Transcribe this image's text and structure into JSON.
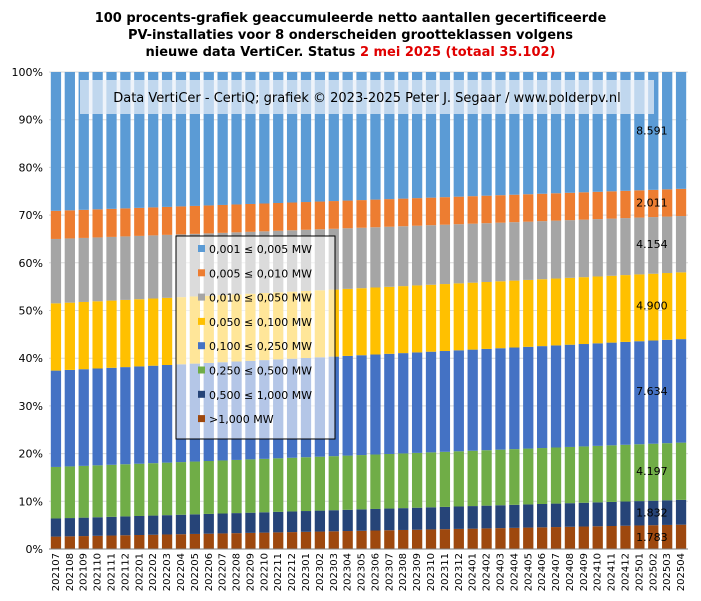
{
  "title": {
    "line1": "100 procents-grafiek geaccumuleerde netto aantallen gecertificeerde",
    "line2": "PV-installaties voor 8 onderscheiden grootteklassen volgens",
    "line3_prefix": "nieuwe data VertiCer. Status",
    "line3_highlight": "2 mei 2025 (totaal 35.102)"
  },
  "colors": {
    "highlight": "#e00000",
    "background": "#ffffff"
  },
  "chart_data": {
    "type": "bar",
    "stacked": true,
    "percent": true,
    "banner": "Data VertiCer - CertiQ; grafiek © 2023-2025 Peter J. Segaar / www.polderpv.nl",
    "ylim": [
      0,
      100
    ],
    "yticks": [
      "0%",
      "10%",
      "20%",
      "30%",
      "40%",
      "50%",
      "60%",
      "70%",
      "80%",
      "90%",
      "100%"
    ],
    "grid": true,
    "legend_position": "left-center",
    "categories": [
      "202107",
      "202108",
      "202109",
      "202110",
      "202111",
      "202112",
      "202201",
      "202202",
      "202203",
      "202204",
      "202205",
      "202206",
      "202207",
      "202208",
      "202209",
      "202210",
      "202211",
      "202212",
      "202301",
      "202302",
      "202303",
      "202304",
      "202305",
      "202306",
      "202307",
      "202308",
      "202309",
      "202310",
      "202311",
      "202312",
      "202401",
      "202402",
      "202403",
      "202404",
      "202405",
      "202406",
      "202407",
      "202408",
      "202409",
      "202410",
      "202411",
      "202412",
      "202501",
      "202502",
      "202503",
      "202504"
    ],
    "series": [
      {
        "name": ">1,000 MW",
        "color": "#9e480e",
        "start": 2.6,
        "end": 5.1
      },
      {
        "name": "0,500 ≤  1,000 MW",
        "color": "#264478",
        "start": 3.8,
        "end": 5.2
      },
      {
        "name": "0,250 ≤  0,500 MW",
        "color": "#70ad47",
        "start": 10.8,
        "end": 12.0
      },
      {
        "name": "0,100 ≤  0,250 MW",
        "color": "#4472c4",
        "start": 20.2,
        "end": 21.7
      },
      {
        "name": "0,050 ≤  0,100 MW",
        "color": "#ffc000",
        "start": 14.1,
        "end": 14.0
      },
      {
        "name": "0,010 ≤  0,050 MW",
        "color": "#a5a5a5",
        "start": 13.5,
        "end": 11.8
      },
      {
        "name": "0,005 ≤  0,010 MW",
        "color": "#ed7d31",
        "start": 5.9,
        "end": 5.7
      },
      {
        "name": "0,001 ≤  0,005 MW",
        "color": "#5b9bd5",
        "start": 29.1,
        "end": 24.5
      }
    ],
    "legend_order": [
      "0,001 ≤  0,005 MW",
      "0,005 ≤  0,010 MW",
      "0,010 ≤  0,050 MW",
      "0,050 ≤  0,100 MW",
      "0,100 ≤  0,250 MW",
      "0,250 ≤  0,500 MW",
      "0,500 ≤  1,000 MW",
      ">1,000 MW"
    ],
    "last_bar_labels": [
      "1.783",
      "1.832",
      "4.197",
      "7.634",
      "4.900",
      "4.154",
      "2.011",
      "8.591"
    ]
  }
}
